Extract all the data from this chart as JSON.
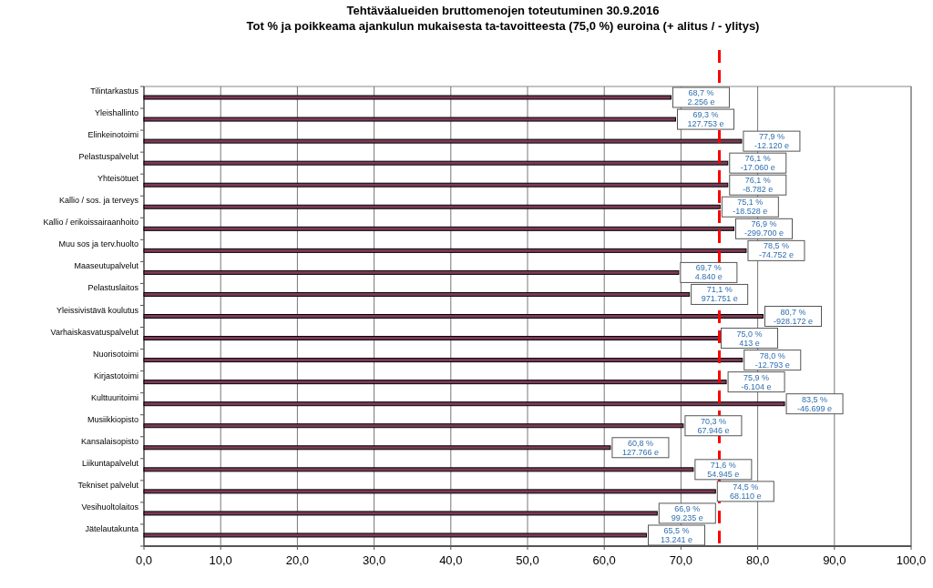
{
  "chart_data": {
    "type": "bar",
    "orientation": "horizontal",
    "title": "Tehtäväalueiden bruttomenojen toteutuminen 30.9.2016",
    "subtitle": "Tot % ja poikkeama ajankulun mukaisesta ta-tavoitteesta (75,0 %) euroina (+ alitus / - ylitys)",
    "categories": [
      "Tilintarkastus",
      "Yleishallinto",
      "Elinkeinotoimi",
      "Pelastuspalvelut",
      "Yhteisötuet",
      "Kallio / sos. ja terveys",
      "Kallio / erikoissairaanhoito",
      "Muu sos ja terv.huolto",
      "Maaseutupalvelut",
      "Pelastuslaitos",
      "Yleissivistävä koulutus",
      "Varhaiskasvatuspalvelut",
      "Nuorisotoimi",
      "Kirjastotoimi",
      "Kulttuuritoimi",
      "Musiikkiopisto",
      "Kansalaisopisto",
      "Liikuntapalvelut",
      "Tekniset palvelut",
      "Vesihuoltolaitos",
      "Jätelautakunta"
    ],
    "values": [
      68.7,
      69.3,
      77.9,
      76.1,
      76.1,
      75.1,
      76.9,
      78.5,
      69.7,
      71.1,
      80.7,
      75.0,
      78.0,
      75.9,
      83.5,
      70.3,
      60.8,
      71.6,
      74.5,
      66.9,
      65.5
    ],
    "value_labels": [
      "68,7 %\n2.256 e",
      "69,3 %\n127.753 e",
      "77,9 %\n-12.120 e",
      "76,1 %\n-17.060 e",
      "76,1 %\n-8.782 e",
      "75,1 %\n-18.528 e",
      "76,9 %\n-299.700 e",
      "78,5 %\n-74.752 e",
      "69,7 %\n4.840 e",
      "71,1 %\n971.751 e",
      "80,7 %\n-928.172 e",
      "75,0 %\n413 e",
      "78,0 %\n-12.793 e",
      "75,9 %\n-6.104 e",
      "83,5 %\n-46.699 e",
      "70,3 %\n67.946 e",
      "60,8 %\n127.766 e",
      "71,6 %\n54.945 e",
      "74,5 %\n68.110 e",
      "66,9 %\n99.235 e",
      "65,5 %\n13.241 e"
    ],
    "color": "#7b3a55",
    "xlim": [
      0,
      100
    ],
    "xticks": [
      {
        "value": 0,
        "label": "0,0"
      },
      {
        "value": 10,
        "label": "10,0"
      },
      {
        "value": 20,
        "label": "20,0"
      },
      {
        "value": 30,
        "label": "30,0"
      },
      {
        "value": 40,
        "label": "40,0"
      },
      {
        "value": 50,
        "label": "50,0"
      },
      {
        "value": 60,
        "label": "60,0"
      },
      {
        "value": 70,
        "label": "70,0"
      },
      {
        "value": 80,
        "label": "80,0"
      },
      {
        "value": 90,
        "label": "90,0"
      },
      {
        "value": 100,
        "label": "100,0"
      }
    ],
    "ref_lines": [
      {
        "axis": "x",
        "value": 75,
        "color": "#ff0000",
        "line_style": "dashed"
      }
    ],
    "grid": "x"
  }
}
